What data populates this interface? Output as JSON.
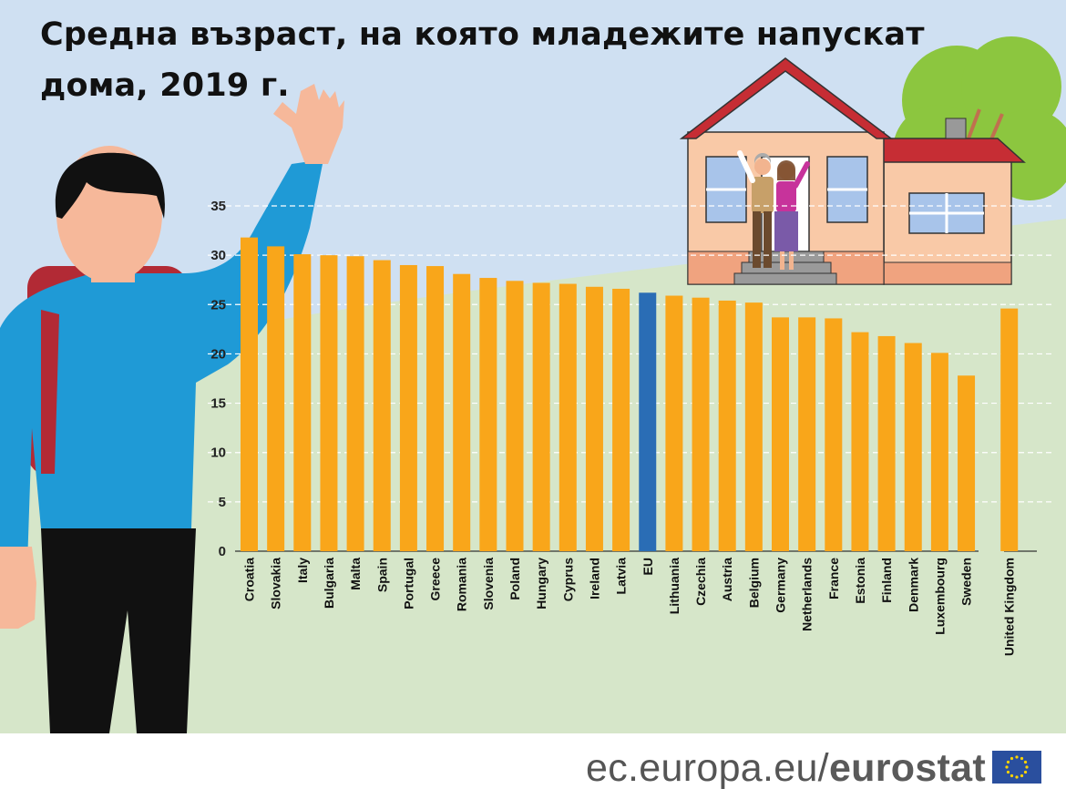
{
  "title": "Средна възраст, на която младежите напускат дома, 2019 г.",
  "footer": {
    "site": "ec.europa.eu/",
    "brand": "eurostat"
  },
  "colors": {
    "bar": "#f9a61a",
    "eu_bar": "#2a6db5",
    "sky": "#cfe0f2",
    "ground": "#d6e6c9",
    "grid": "#ffffff"
  },
  "icons": [
    "waving-person-illustration",
    "house-illustration",
    "elderly-couple-illustration",
    "tree-illustration",
    "eu-flag-icon"
  ],
  "chart_data": {
    "type": "bar",
    "title": "Средна възраст, на която младежите напускат дома, 2019 г.",
    "xlabel": "",
    "ylabel": "",
    "ylim": [
      0,
      35
    ],
    "yticks": [
      0,
      5,
      10,
      15,
      20,
      25,
      30,
      35
    ],
    "grid": true,
    "categories": [
      "Croatia",
      "Slovakia",
      "Italy",
      "Bulgaria",
      "Malta",
      "Spain",
      "Portugal",
      "Greece",
      "Romania",
      "Slovenia",
      "Poland",
      "Hungary",
      "Cyprus",
      "Ireland",
      "Latvia",
      "EU",
      "Lithuania",
      "Czechia",
      "Austria",
      "Belgium",
      "Germany",
      "Netherlands",
      "France",
      "Estonia",
      "Finland",
      "Denmark",
      "Luxembourg",
      "Sweden",
      "United Kingdom"
    ],
    "values": [
      31.8,
      30.9,
      30.1,
      30.0,
      29.9,
      29.5,
      29.0,
      28.9,
      28.1,
      27.7,
      27.4,
      27.2,
      27.1,
      26.8,
      26.6,
      26.2,
      25.9,
      25.7,
      25.4,
      25.2,
      23.7,
      23.7,
      23.6,
      22.2,
      21.8,
      21.1,
      20.1,
      17.8,
      24.6
    ],
    "highlight": "EU"
  }
}
